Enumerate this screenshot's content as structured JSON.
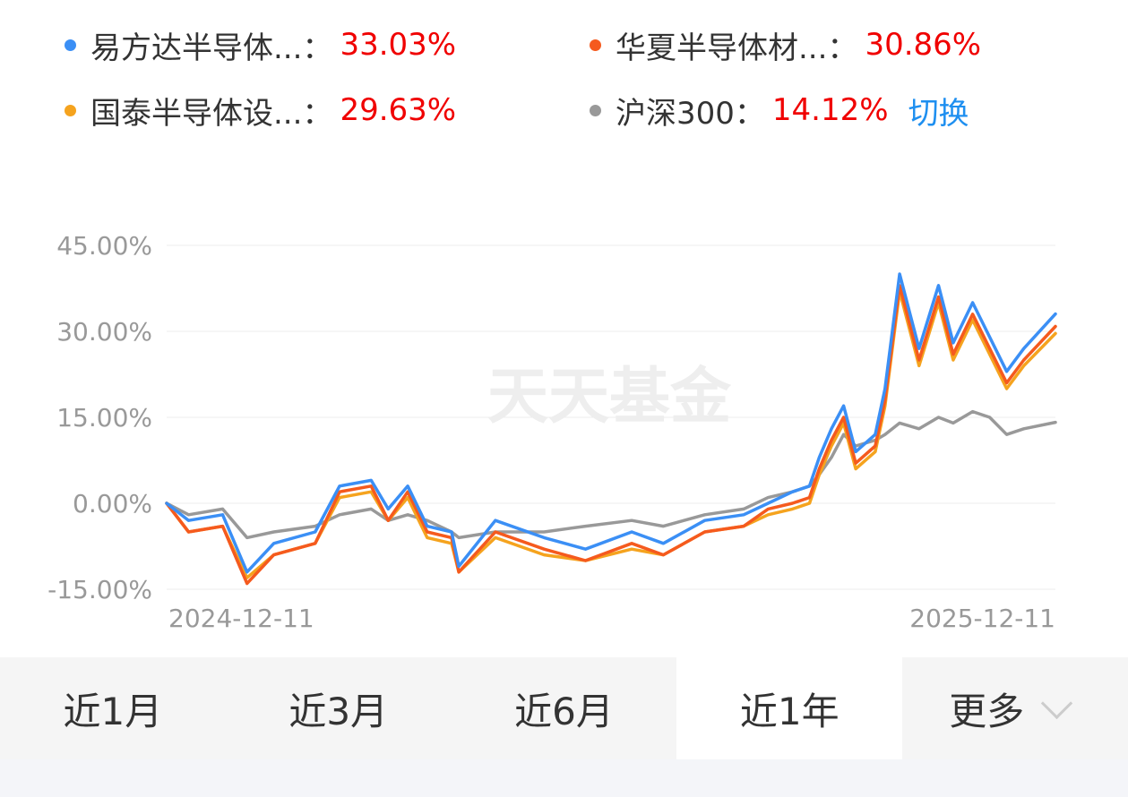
{
  "legend": [
    {
      "name": "易方达半导体...：",
      "value": "33.03%",
      "color": "#3b8ff5"
    },
    {
      "name": "华夏半导体材...：",
      "value": "30.86%",
      "color": "#f55a1e"
    },
    {
      "name": "国泰半导体设...：",
      "value": "29.63%",
      "color": "#f5a31e"
    },
    {
      "name": "沪深300：",
      "value": "14.12%",
      "color": "#999999"
    }
  ],
  "switch_label": "切换",
  "watermark": "天天基金",
  "chart_data": {
    "type": "line",
    "x_start": "2024-12-11",
    "x_end": "2025-12-11",
    "x_tick_labels": [
      "2024-12-11",
      "2025-12-11"
    ],
    "y_ticks": [
      45,
      30,
      15,
      0,
      -15
    ],
    "y_tick_labels": [
      "45.00%",
      "30.00%",
      "15.00%",
      "0.00%",
      "-15.00%"
    ],
    "ylim": [
      -15,
      45
    ],
    "grid": true,
    "legend_position": "top",
    "series": [
      {
        "name": "易方达半导体...",
        "color": "#3b8ff5",
        "x": [
          "2024-12-11",
          "2024-12-20",
          "2025-01-03",
          "2025-01-13",
          "2025-01-24",
          "2025-02-10",
          "2025-02-20",
          "2025-03-05",
          "2025-03-12",
          "2025-03-20",
          "2025-03-28",
          "2025-04-07",
          "2025-04-10",
          "2025-04-25",
          "2025-05-15",
          "2025-06-01",
          "2025-06-20",
          "2025-07-03",
          "2025-07-20",
          "2025-08-05",
          "2025-08-15",
          "2025-08-25",
          "2025-09-01",
          "2025-09-05",
          "2025-09-10",
          "2025-09-15",
          "2025-09-20",
          "2025-09-28",
          "2025-10-02",
          "2025-10-08",
          "2025-10-16",
          "2025-10-24",
          "2025-10-30",
          "2025-11-07",
          "2025-11-14",
          "2025-11-21",
          "2025-11-28",
          "2025-12-11"
        ],
        "y": [
          0,
          -3,
          -2,
          -12,
          -7,
          -5,
          3,
          4,
          -1,
          3,
          -4,
          -5,
          -11,
          -3,
          -6,
          -8,
          -5,
          -7,
          -3,
          -2,
          0,
          2,
          3,
          8,
          13,
          17,
          9,
          12,
          20,
          40,
          27,
          38,
          28,
          35,
          29,
          23,
          27,
          33.03
        ]
      },
      {
        "name": "华夏半导体材...",
        "color": "#f55a1e",
        "x": [
          "2024-12-11",
          "2024-12-20",
          "2025-01-03",
          "2025-01-13",
          "2025-01-24",
          "2025-02-10",
          "2025-02-20",
          "2025-03-05",
          "2025-03-12",
          "2025-03-20",
          "2025-03-28",
          "2025-04-07",
          "2025-04-10",
          "2025-04-25",
          "2025-05-15",
          "2025-06-01",
          "2025-06-20",
          "2025-07-03",
          "2025-07-20",
          "2025-08-05",
          "2025-08-15",
          "2025-08-25",
          "2025-09-01",
          "2025-09-05",
          "2025-09-10",
          "2025-09-15",
          "2025-09-20",
          "2025-09-28",
          "2025-10-02",
          "2025-10-08",
          "2025-10-16",
          "2025-10-24",
          "2025-10-30",
          "2025-11-07",
          "2025-11-14",
          "2025-11-21",
          "2025-11-28",
          "2025-12-11"
        ],
        "y": [
          0,
          -5,
          -4,
          -14,
          -9,
          -7,
          2,
          3,
          -3,
          2,
          -5,
          -6,
          -12,
          -5,
          -8,
          -10,
          -7,
          -9,
          -5,
          -4,
          -1,
          0,
          1,
          6,
          11,
          15,
          7,
          10,
          18,
          38,
          25,
          36,
          26,
          33,
          27,
          21,
          25,
          30.86
        ]
      },
      {
        "name": "国泰半导体设...",
        "color": "#f5a31e",
        "x": [
          "2024-12-11",
          "2024-12-20",
          "2025-01-03",
          "2025-01-13",
          "2025-01-24",
          "2025-02-10",
          "2025-02-20",
          "2025-03-05",
          "2025-03-12",
          "2025-03-20",
          "2025-03-28",
          "2025-04-07",
          "2025-04-10",
          "2025-04-25",
          "2025-05-15",
          "2025-06-01",
          "2025-06-20",
          "2025-07-03",
          "2025-07-20",
          "2025-08-05",
          "2025-08-15",
          "2025-08-25",
          "2025-09-01",
          "2025-09-05",
          "2025-09-10",
          "2025-09-15",
          "2025-09-20",
          "2025-09-28",
          "2025-10-02",
          "2025-10-08",
          "2025-10-16",
          "2025-10-24",
          "2025-10-30",
          "2025-11-07",
          "2025-11-14",
          "2025-11-21",
          "2025-11-28",
          "2025-12-11"
        ],
        "y": [
          0,
          -5,
          -4,
          -13,
          -9,
          -7,
          1,
          2,
          -3,
          1,
          -6,
          -7,
          -12,
          -6,
          -9,
          -10,
          -8,
          -9,
          -5,
          -4,
          -2,
          -1,
          0,
          5,
          10,
          14,
          6,
          9,
          17,
          37,
          24,
          35,
          25,
          32,
          26,
          20,
          24,
          29.63
        ]
      },
      {
        "name": "沪深300",
        "color": "#999999",
        "x": [
          "2024-12-11",
          "2024-12-20",
          "2025-01-03",
          "2025-01-13",
          "2025-01-24",
          "2025-02-10",
          "2025-02-20",
          "2025-03-05",
          "2025-03-12",
          "2025-03-20",
          "2025-03-28",
          "2025-04-07",
          "2025-04-10",
          "2025-04-25",
          "2025-05-15",
          "2025-06-01",
          "2025-06-20",
          "2025-07-03",
          "2025-07-20",
          "2025-08-05",
          "2025-08-15",
          "2025-08-25",
          "2025-09-01",
          "2025-09-05",
          "2025-09-10",
          "2025-09-15",
          "2025-09-20",
          "2025-09-28",
          "2025-10-02",
          "2025-10-08",
          "2025-10-16",
          "2025-10-24",
          "2025-10-30",
          "2025-11-07",
          "2025-11-14",
          "2025-11-21",
          "2025-11-28",
          "2025-12-11"
        ],
        "y": [
          0,
          -2,
          -1,
          -6,
          -5,
          -4,
          -2,
          -1,
          -3,
          -2,
          -3,
          -5,
          -6,
          -5,
          -5,
          -4,
          -3,
          -4,
          -2,
          -1,
          1,
          2,
          3,
          5,
          8,
          12,
          10,
          11,
          12,
          14,
          13,
          15,
          14,
          16,
          15,
          12,
          13,
          14.12
        ]
      }
    ]
  },
  "tabs": [
    {
      "label": "近1月",
      "active": false
    },
    {
      "label": "近3月",
      "active": false
    },
    {
      "label": "近6月",
      "active": false
    },
    {
      "label": "近1年",
      "active": true
    },
    {
      "label": "更多",
      "active": false
    }
  ]
}
